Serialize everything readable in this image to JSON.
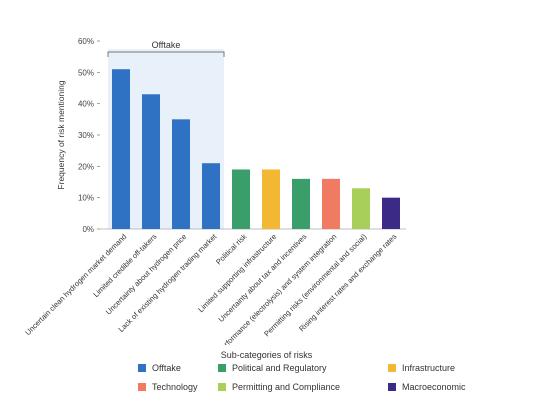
{
  "chart_data": {
    "type": "bar",
    "ylabel": "Frequency of risk mentioning",
    "ylim": [
      0,
      60
    ],
    "yticks": [
      "0%",
      "10%",
      "20%",
      "30%",
      "40%",
      "50%",
      "60%"
    ],
    "grid": false,
    "highlight_group": {
      "label": "Offtake",
      "from_index": 0,
      "to_index": 3,
      "shaded": true,
      "color": "#E8F1FA"
    },
    "categories": [
      "Uncertain clean hydrogen market demand",
      "Limited credible off-takers",
      "Uncertainty about hydrogen price",
      "Lack of existing hydrogen trading market",
      "Political risk",
      "Limited supporting infrastructure",
      "Uncertainty about tax and incentives",
      "Uncertain technology performance (electrolysis) and system integration",
      "Permitting risks (environmental and social)",
      "Rising interest rates and exchange rates"
    ],
    "values": [
      51,
      43,
      35,
      21,
      19,
      19,
      16,
      16,
      13,
      10
    ],
    "bar_groups": [
      "Offtake",
      "Offtake",
      "Offtake",
      "Offtake",
      "Political and Regulatory",
      "Infrastructure",
      "Political and Regulatory",
      "Technology",
      "Permitting and Compliance",
      "Macroeconomic"
    ],
    "legend_title": "Sub-categories of risks",
    "legend_position": "bottom",
    "legend": [
      {
        "name": "Offtake",
        "color": "#2F72C4"
      },
      {
        "name": "Political and Regulatory",
        "color": "#3A9E6B"
      },
      {
        "name": "Infrastructure",
        "color": "#F2B833"
      },
      {
        "name": "Technology",
        "color": "#F07A62"
      },
      {
        "name": "Permitting and Compliance",
        "color": "#A8CF5A"
      },
      {
        "name": "Macroeconomic",
        "color": "#3B2A86"
      }
    ]
  }
}
